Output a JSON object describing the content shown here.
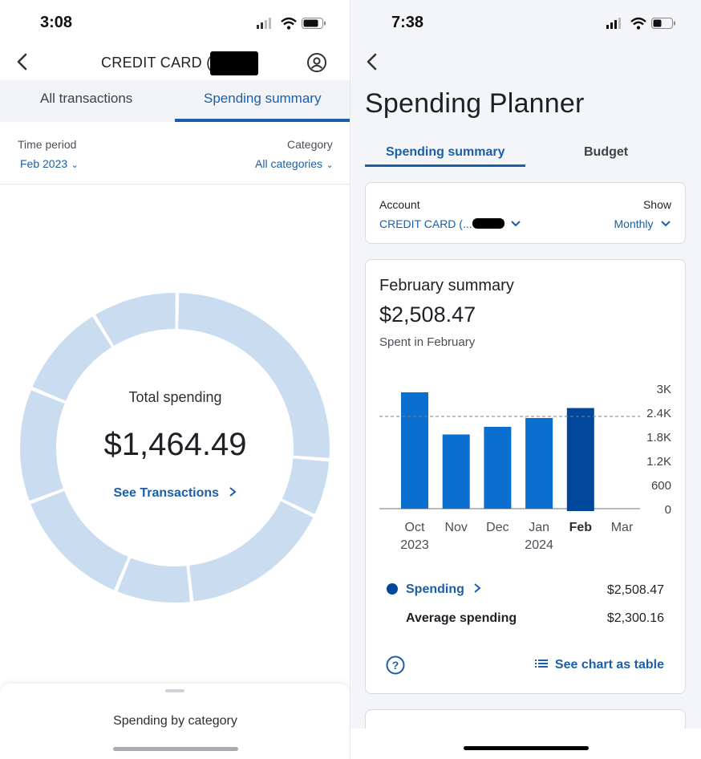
{
  "left": {
    "status": {
      "time": "3:08"
    },
    "header": {
      "title": "CREDIT CARD (..."
    },
    "tabs": [
      {
        "label": "All transactions",
        "active": false
      },
      {
        "label": "Spending summary",
        "active": true
      }
    ],
    "filters": {
      "time_period_label": "Time period",
      "time_period_value": "Feb 2023",
      "category_label": "Category",
      "category_value": "All categories"
    },
    "donut": {
      "label": "Total spending",
      "amount": "$1,464.49",
      "link": "See Transactions",
      "color": "#c9dcf0"
    },
    "bottom_sheet": {
      "title": "Spending by category"
    }
  },
  "right": {
    "status": {
      "time": "7:38"
    },
    "title": "Spending Planner",
    "tabs": [
      {
        "label": "Spending summary",
        "active": true
      },
      {
        "label": "Budget",
        "active": false
      }
    ],
    "account_card": {
      "account_label": "Account",
      "account_value": "CREDIT CARD (...",
      "show_label": "Show",
      "show_value": "Monthly"
    },
    "summary_card": {
      "title": "February summary",
      "amount": "$2,508.47",
      "subtitle": "Spent in February",
      "legend": {
        "spending_label": "Spending",
        "spending_value": "$2,508.47",
        "average_label": "Average spending",
        "average_value": "$2,300.16"
      },
      "table_link": "See chart as table"
    },
    "accent_color": "#1b5fa8",
    "bar_color": "#0a6fcf",
    "bar_selected_color": "#00479b"
  },
  "chart_data": {
    "type": "bar",
    "categories": [
      "Oct\n2023",
      "Nov",
      "Dec",
      "Jan\n2024",
      "Feb",
      "Mar"
    ],
    "series": [
      {
        "name": "Spending",
        "values": [
          2900,
          1850,
          2040,
          2260,
          2508.47,
          null
        ]
      }
    ],
    "reference_lines": [
      {
        "name": "Average spending",
        "value": 2300.16
      }
    ],
    "yticks": [
      "3K",
      "2.4K",
      "1.8K",
      "1.2K",
      "600",
      "0"
    ],
    "ylim": [
      0,
      3000
    ],
    "selected": "Feb",
    "grid": false
  }
}
